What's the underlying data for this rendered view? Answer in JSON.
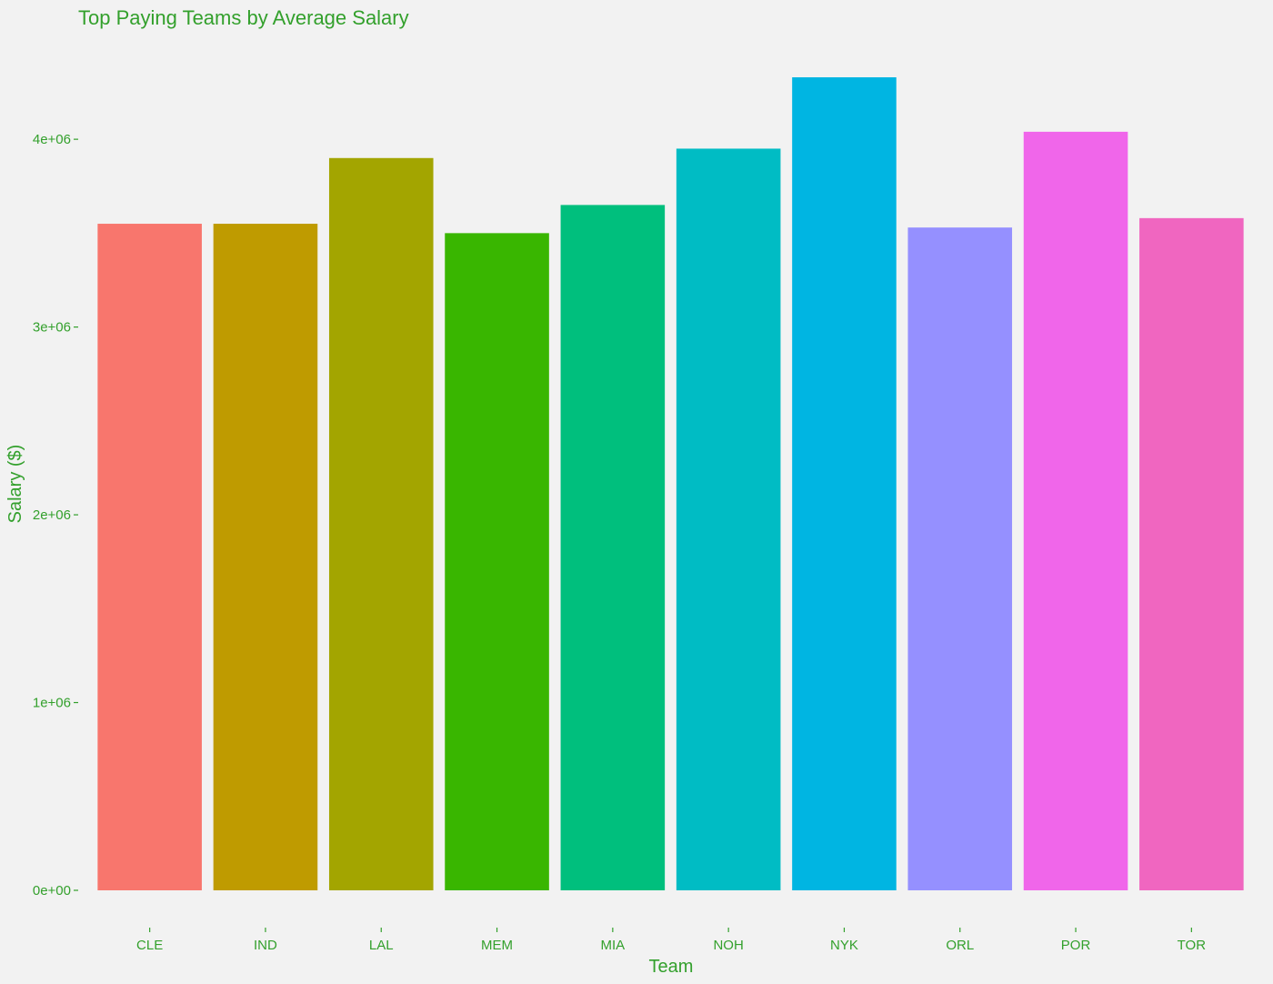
{
  "chart_data": {
    "type": "bar",
    "title": "Top Paying Teams by Average Salary",
    "xlabel": "Team",
    "ylabel": "Salary ($)",
    "categories": [
      "CLE",
      "IND",
      "LAL",
      "MEM",
      "MIA",
      "NOH",
      "NYK",
      "ORL",
      "POR",
      "TOR"
    ],
    "values": [
      3550000,
      3550000,
      3900000,
      3500000,
      3650000,
      3950000,
      4330000,
      3530000,
      4040000,
      3580000
    ],
    "colors": [
      "#f8766d",
      "#bf9b00",
      "#a3a500",
      "#39b600",
      "#00bf7d",
      "#00bcc4",
      "#00b5e2",
      "#9590ff",
      "#f066ea",
      "#f066c0"
    ],
    "ylim": [
      0,
      4330000
    ],
    "yticks": [
      0,
      1000000,
      2000000,
      3000000,
      4000000
    ],
    "ytick_labels": [
      "0e+00",
      "1e+06",
      "2e+06",
      "3e+06",
      "4e+06"
    ],
    "grid": false,
    "legend": "none",
    "text_color": "#33a02c",
    "background": "#f2f2f2"
  }
}
